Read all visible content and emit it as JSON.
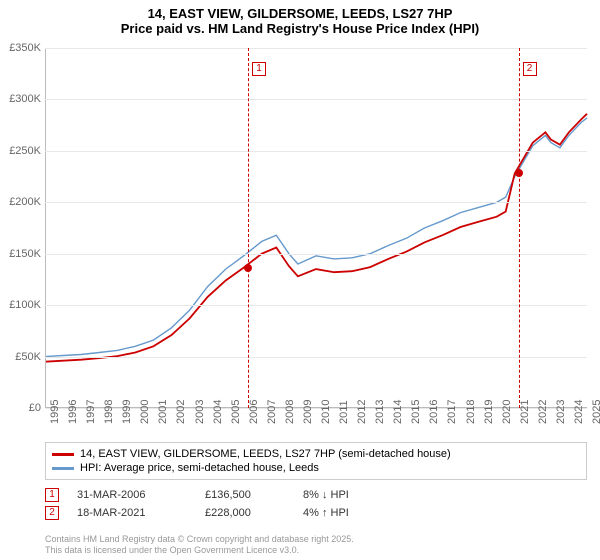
{
  "title": {
    "line1": "14, EAST VIEW, GILDERSOME, LEEDS, LS27 7HP",
    "line2": "Price paid vs. HM Land Registry's House Price Index (HPI)"
  },
  "chart": {
    "type": "line",
    "background_color": "#ffffff",
    "grid_color": "#e8e8e8",
    "axis_color": "#bbbbbb",
    "ylim": [
      0,
      350000
    ],
    "ytick_step": 50000,
    "ytick_labels": [
      "£0",
      "£50K",
      "£100K",
      "£150K",
      "£200K",
      "£250K",
      "£300K",
      "£350K"
    ],
    "x_years": [
      1995,
      1996,
      1997,
      1998,
      1999,
      2000,
      2001,
      2002,
      2003,
      2004,
      2005,
      2006,
      2007,
      2008,
      2009,
      2010,
      2011,
      2012,
      2013,
      2014,
      2015,
      2016,
      2017,
      2018,
      2019,
      2020,
      2021,
      2022,
      2023,
      2024,
      2025
    ],
    "series": [
      {
        "name": "HPI: Average price, semi-detached house, Leeds",
        "color": "#6699cc",
        "line_width": 1.4,
        "points": [
          [
            1995,
            50000
          ],
          [
            1996,
            51000
          ],
          [
            1997,
            52000
          ],
          [
            1998,
            54000
          ],
          [
            1999,
            56000
          ],
          [
            2000,
            60000
          ],
          [
            2001,
            66000
          ],
          [
            2002,
            78000
          ],
          [
            2003,
            95000
          ],
          [
            2004,
            118000
          ],
          [
            2005,
            135000
          ],
          [
            2006,
            148000
          ],
          [
            2007,
            162000
          ],
          [
            2007.8,
            168000
          ],
          [
            2008.5,
            150000
          ],
          [
            2009,
            140000
          ],
          [
            2010,
            148000
          ],
          [
            2011,
            145000
          ],
          [
            2012,
            146000
          ],
          [
            2013,
            150000
          ],
          [
            2014,
            158000
          ],
          [
            2015,
            165000
          ],
          [
            2016,
            175000
          ],
          [
            2017,
            182000
          ],
          [
            2018,
            190000
          ],
          [
            2019,
            195000
          ],
          [
            2020,
            200000
          ],
          [
            2020.5,
            205000
          ],
          [
            2021,
            225000
          ],
          [
            2022,
            255000
          ],
          [
            2022.7,
            265000
          ],
          [
            2023,
            258000
          ],
          [
            2023.5,
            253000
          ],
          [
            2024,
            265000
          ],
          [
            2024.7,
            278000
          ],
          [
            2025,
            282000
          ]
        ]
      },
      {
        "name": "14, EAST VIEW, GILDERSOME, LEEDS, LS27 7HP (semi-detached house)",
        "color": "#cc0000",
        "line_width": 1.8,
        "points": [
          [
            1995,
            45000
          ],
          [
            1996,
            46000
          ],
          [
            1997,
            47000
          ],
          [
            1998,
            48500
          ],
          [
            1999,
            50500
          ],
          [
            2000,
            54000
          ],
          [
            2001,
            60000
          ],
          [
            2002,
            71000
          ],
          [
            2003,
            87000
          ],
          [
            2004,
            108000
          ],
          [
            2005,
            124000
          ],
          [
            2006,
            136500
          ],
          [
            2007,
            150000
          ],
          [
            2007.8,
            156000
          ],
          [
            2008.5,
            138000
          ],
          [
            2009,
            128000
          ],
          [
            2010,
            135000
          ],
          [
            2011,
            132000
          ],
          [
            2012,
            133000
          ],
          [
            2013,
            137000
          ],
          [
            2014,
            145000
          ],
          [
            2015,
            152000
          ],
          [
            2016,
            161000
          ],
          [
            2017,
            168000
          ],
          [
            2018,
            176000
          ],
          [
            2019,
            181000
          ],
          [
            2020,
            186000
          ],
          [
            2020.5,
            191000
          ],
          [
            2021,
            228000
          ],
          [
            2022,
            258000
          ],
          [
            2022.7,
            268000
          ],
          [
            2023,
            261000
          ],
          [
            2023.5,
            256000
          ],
          [
            2024,
            268000
          ],
          [
            2024.7,
            281000
          ],
          [
            2025,
            286000
          ]
        ]
      }
    ],
    "sales": [
      {
        "badge": "1",
        "year": 2006.24,
        "price": 136500,
        "date": "31-MAR-2006",
        "price_label": "£136,500",
        "delta": "8% ↓ HPI",
        "marker_color": "#cc0000"
      },
      {
        "badge": "2",
        "year": 2021.21,
        "price": 228000,
        "date": "18-MAR-2021",
        "price_label": "£228,000",
        "delta": "4% ↑ HPI",
        "marker_color": "#cc0000"
      }
    ],
    "event_line_color": "#cc0000"
  },
  "legend": {
    "border_color": "#cccccc"
  },
  "footer": {
    "line1": "Contains HM Land Registry data © Crown copyright and database right 2025.",
    "line2": "This data is licensed under the Open Government Licence v3.0."
  }
}
